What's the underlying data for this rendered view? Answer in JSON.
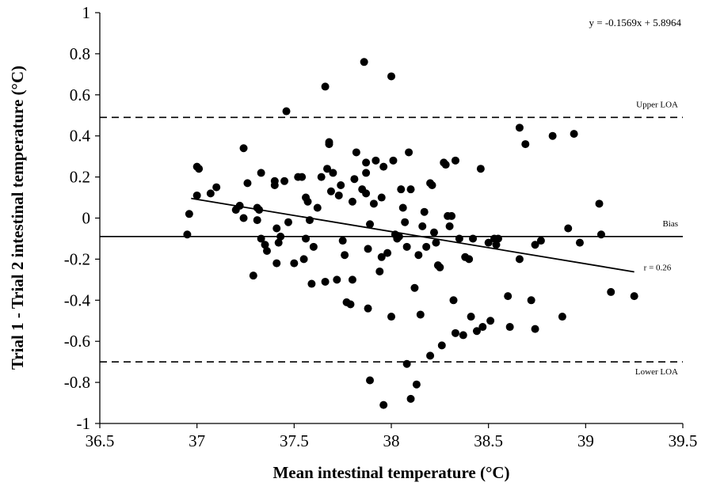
{
  "chart_data": {
    "type": "scatter",
    "xlabel": "Mean intestinal temperature (°C)",
    "ylabel": "Trial 1 - Trial 2 intestinal temperature (°C)",
    "xlim": [
      36.5,
      39.5
    ],
    "ylim": [
      -1,
      1
    ],
    "x_ticks": [
      "36.5",
      "37",
      "37.5",
      "38",
      "38.5",
      "39",
      "39.5"
    ],
    "y_ticks": [
      "1",
      "0.8",
      "0.6",
      "0.4",
      "0.2",
      "0",
      "-0.2",
      "-0.4",
      "-0.6",
      "-0.8",
      "-1"
    ],
    "x_tick_values": [
      36.5,
      37,
      37.5,
      38,
      38.5,
      39,
      39.5
    ],
    "y_tick_values": [
      1,
      0.8,
      0.6,
      0.4,
      0.2,
      0,
      -0.2,
      -0.4,
      -0.6,
      -0.8,
      -1
    ],
    "grid": false,
    "equation": "y = -0.1569x + 5.8964",
    "regression": {
      "slope": -0.1569,
      "intercept": 5.8964,
      "x_range": [
        36.97,
        39.25
      ],
      "label": "r = 0.26"
    },
    "reference_lines": [
      {
        "label": "Upper LOA",
        "y": 0.49,
        "style": "dashed"
      },
      {
        "label": "Bias",
        "y": -0.09,
        "style": "solid"
      },
      {
        "label": "Lower LOA",
        "y": -0.7,
        "style": "dashed"
      }
    ],
    "points": [
      [
        36.95,
        -0.08
      ],
      [
        36.96,
        0.02
      ],
      [
        37.0,
        0.11
      ],
      [
        37.0,
        0.25
      ],
      [
        37.01,
        0.24
      ],
      [
        37.07,
        0.12
      ],
      [
        37.1,
        0.15
      ],
      [
        37.2,
        0.04
      ],
      [
        37.22,
        0.06
      ],
      [
        37.24,
        0.34
      ],
      [
        37.24,
        0.0
      ],
      [
        37.26,
        0.17
      ],
      [
        37.29,
        -0.28
      ],
      [
        37.31,
        0.05
      ],
      [
        37.31,
        -0.01
      ],
      [
        37.32,
        0.04
      ],
      [
        37.33,
        0.22
      ],
      [
        37.33,
        -0.1
      ],
      [
        37.35,
        -0.13
      ],
      [
        37.36,
        -0.16
      ],
      [
        37.4,
        0.18
      ],
      [
        37.4,
        0.16
      ],
      [
        37.41,
        -0.05
      ],
      [
        37.41,
        -0.22
      ],
      [
        37.42,
        -0.12
      ],
      [
        37.43,
        -0.09
      ],
      [
        37.45,
        0.18
      ],
      [
        37.47,
        -0.02
      ],
      [
        37.46,
        0.52
      ],
      [
        37.5,
        -0.22
      ],
      [
        37.52,
        0.2
      ],
      [
        37.54,
        0.2
      ],
      [
        37.55,
        -0.2
      ],
      [
        37.56,
        0.1
      ],
      [
        37.56,
        -0.1
      ],
      [
        37.57,
        0.08
      ],
      [
        37.58,
        -0.01
      ],
      [
        37.59,
        -0.32
      ],
      [
        37.6,
        -0.14
      ],
      [
        37.62,
        0.05
      ],
      [
        37.64,
        0.2
      ],
      [
        37.66,
        -0.31
      ],
      [
        37.66,
        0.64
      ],
      [
        37.67,
        0.24
      ],
      [
        37.68,
        0.37
      ],
      [
        37.68,
        0.36
      ],
      [
        37.69,
        0.13
      ],
      [
        37.7,
        0.22
      ],
      [
        37.72,
        -0.3
      ],
      [
        37.73,
        0.11
      ],
      [
        37.74,
        0.16
      ],
      [
        37.75,
        -0.11
      ],
      [
        37.76,
        -0.18
      ],
      [
        37.77,
        -0.41
      ],
      [
        37.79,
        -0.42
      ],
      [
        37.8,
        0.08
      ],
      [
        37.8,
        -0.3
      ],
      [
        37.81,
        0.19
      ],
      [
        37.82,
        0.32
      ],
      [
        37.85,
        0.14
      ],
      [
        37.86,
        0.76
      ],
      [
        37.87,
        0.27
      ],
      [
        37.87,
        0.22
      ],
      [
        37.87,
        0.12
      ],
      [
        37.88,
        -0.44
      ],
      [
        37.88,
        -0.15
      ],
      [
        37.89,
        -0.03
      ],
      [
        37.89,
        -0.79
      ],
      [
        37.91,
        0.07
      ],
      [
        37.92,
        0.28
      ],
      [
        37.94,
        -0.26
      ],
      [
        37.95,
        0.1
      ],
      [
        37.95,
        -0.19
      ],
      [
        37.96,
        -0.91
      ],
      [
        37.96,
        0.25
      ],
      [
        37.98,
        -0.17
      ],
      [
        38.0,
        -0.48
      ],
      [
        38.0,
        0.69
      ],
      [
        38.01,
        0.28
      ],
      [
        38.02,
        -0.08
      ],
      [
        38.03,
        -0.1
      ],
      [
        38.04,
        -0.09
      ],
      [
        38.05,
        0.14
      ],
      [
        38.06,
        0.05
      ],
      [
        38.07,
        -0.02
      ],
      [
        38.08,
        -0.71
      ],
      [
        38.08,
        -0.14
      ],
      [
        38.09,
        0.32
      ],
      [
        38.1,
        0.14
      ],
      [
        38.1,
        -0.88
      ],
      [
        38.12,
        -0.34
      ],
      [
        38.13,
        -0.81
      ],
      [
        38.14,
        -0.18
      ],
      [
        38.15,
        -0.47
      ],
      [
        38.16,
        -0.04
      ],
      [
        38.17,
        0.03
      ],
      [
        38.18,
        -0.14
      ],
      [
        38.2,
        -0.67
      ],
      [
        38.2,
        0.17
      ],
      [
        38.21,
        0.16
      ],
      [
        38.22,
        -0.07
      ],
      [
        38.23,
        -0.12
      ],
      [
        38.24,
        -0.23
      ],
      [
        38.25,
        -0.24
      ],
      [
        38.26,
        -0.62
      ],
      [
        38.27,
        0.27
      ],
      [
        38.28,
        0.26
      ],
      [
        38.29,
        0.01
      ],
      [
        38.3,
        -0.04
      ],
      [
        38.31,
        0.01
      ],
      [
        38.32,
        -0.4
      ],
      [
        38.33,
        -0.56
      ],
      [
        38.33,
        0.28
      ],
      [
        38.35,
        -0.1
      ],
      [
        38.37,
        -0.57
      ],
      [
        38.38,
        -0.19
      ],
      [
        38.4,
        -0.2
      ],
      [
        38.41,
        -0.48
      ],
      [
        38.42,
        -0.1
      ],
      [
        38.44,
        -0.55
      ],
      [
        38.46,
        0.24
      ],
      [
        38.47,
        -0.53
      ],
      [
        38.5,
        -0.12
      ],
      [
        38.51,
        -0.5
      ],
      [
        38.53,
        -0.1
      ],
      [
        38.54,
        -0.13
      ],
      [
        38.55,
        -0.1
      ],
      [
        38.6,
        -0.38
      ],
      [
        38.61,
        -0.53
      ],
      [
        38.66,
        0.44
      ],
      [
        38.66,
        -0.2
      ],
      [
        38.69,
        0.36
      ],
      [
        38.72,
        -0.4
      ],
      [
        38.74,
        -0.13
      ],
      [
        38.74,
        -0.54
      ],
      [
        38.77,
        -0.11
      ],
      [
        38.83,
        0.4
      ],
      [
        38.88,
        -0.48
      ],
      [
        38.91,
        -0.05
      ],
      [
        38.94,
        0.41
      ],
      [
        38.97,
        -0.12
      ],
      [
        39.07,
        0.07
      ],
      [
        39.08,
        -0.08
      ],
      [
        39.13,
        -0.36
      ],
      [
        39.25,
        -0.38
      ]
    ]
  }
}
